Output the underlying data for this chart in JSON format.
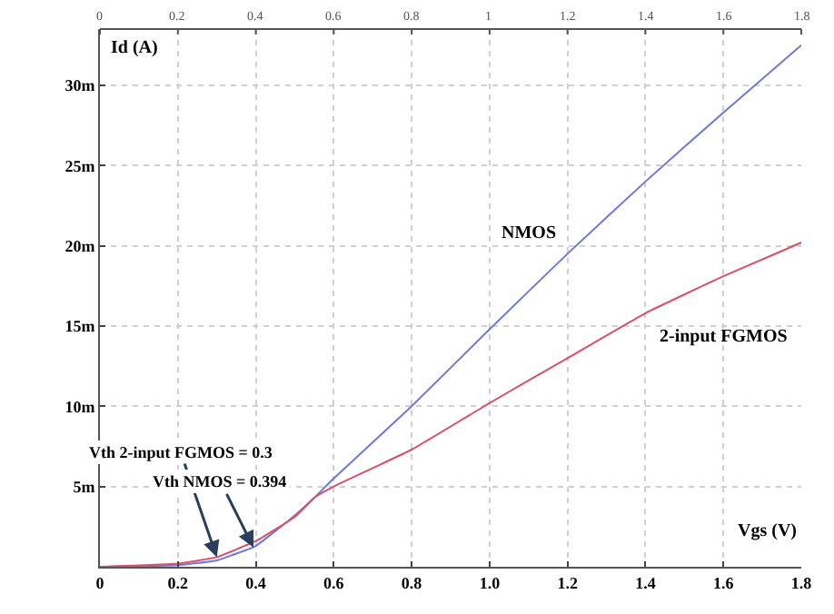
{
  "chart_data": {
    "type": "line",
    "xlabel": "Vgs (V)",
    "ylabel": "Id (A)",
    "x": [
      0,
      0.2,
      0.3,
      0.4,
      0.5,
      0.55,
      0.6,
      0.8,
      1.0,
      1.2,
      1.4,
      1.6,
      1.8
    ],
    "series": [
      {
        "name": "NMOS",
        "color": "#6f78d8",
        "values": [
          0,
          0.1,
          0.4,
          1.3,
          3.2,
          4.3,
          5.5,
          10,
          14.8,
          19.5,
          24,
          28.3,
          32.5
        ]
      },
      {
        "name": "2-input FGMOS",
        "color": "#d8506a",
        "values": [
          0,
          0.2,
          0.6,
          1.6,
          3.1,
          4.3,
          5,
          7.3,
          10.2,
          13,
          15.8,
          18.1,
          20.2
        ]
      }
    ],
    "xlim": [
      0,
      1.8
    ],
    "xticks": [
      0,
      0.2,
      0.4,
      0.6,
      0.8,
      {
        "value": 1,
        "label": "1.0"
      },
      1.2,
      1.4,
      1.6,
      1.8
    ],
    "x2lim": [
      0,
      1.8
    ],
    "x2ticks": [
      0,
      0.2,
      0.4,
      0.6,
      0.8,
      1,
      1.2,
      1.4,
      1.6,
      1.8
    ],
    "ylim": [
      0,
      33.5
    ],
    "yticks": [
      {
        "value": 5,
        "label": "5m"
      },
      {
        "value": 10,
        "label": "10m"
      },
      {
        "value": 15,
        "label": "15m"
      },
      {
        "value": 20,
        "label": "20m"
      },
      {
        "value": 25,
        "label": "25m"
      },
      {
        "value": 30,
        "label": "30m"
      }
    ],
    "annotations": [
      {
        "text": "Vth 2-input FGMOS = 0.3",
        "x": 0.3,
        "y": 0.6
      },
      {
        "text": "Vth NMOS = 0.394",
        "x": 0.394,
        "y": 1.2
      }
    ],
    "grid": true,
    "legend": false,
    "marker": "none",
    "line_style": "solid"
  }
}
